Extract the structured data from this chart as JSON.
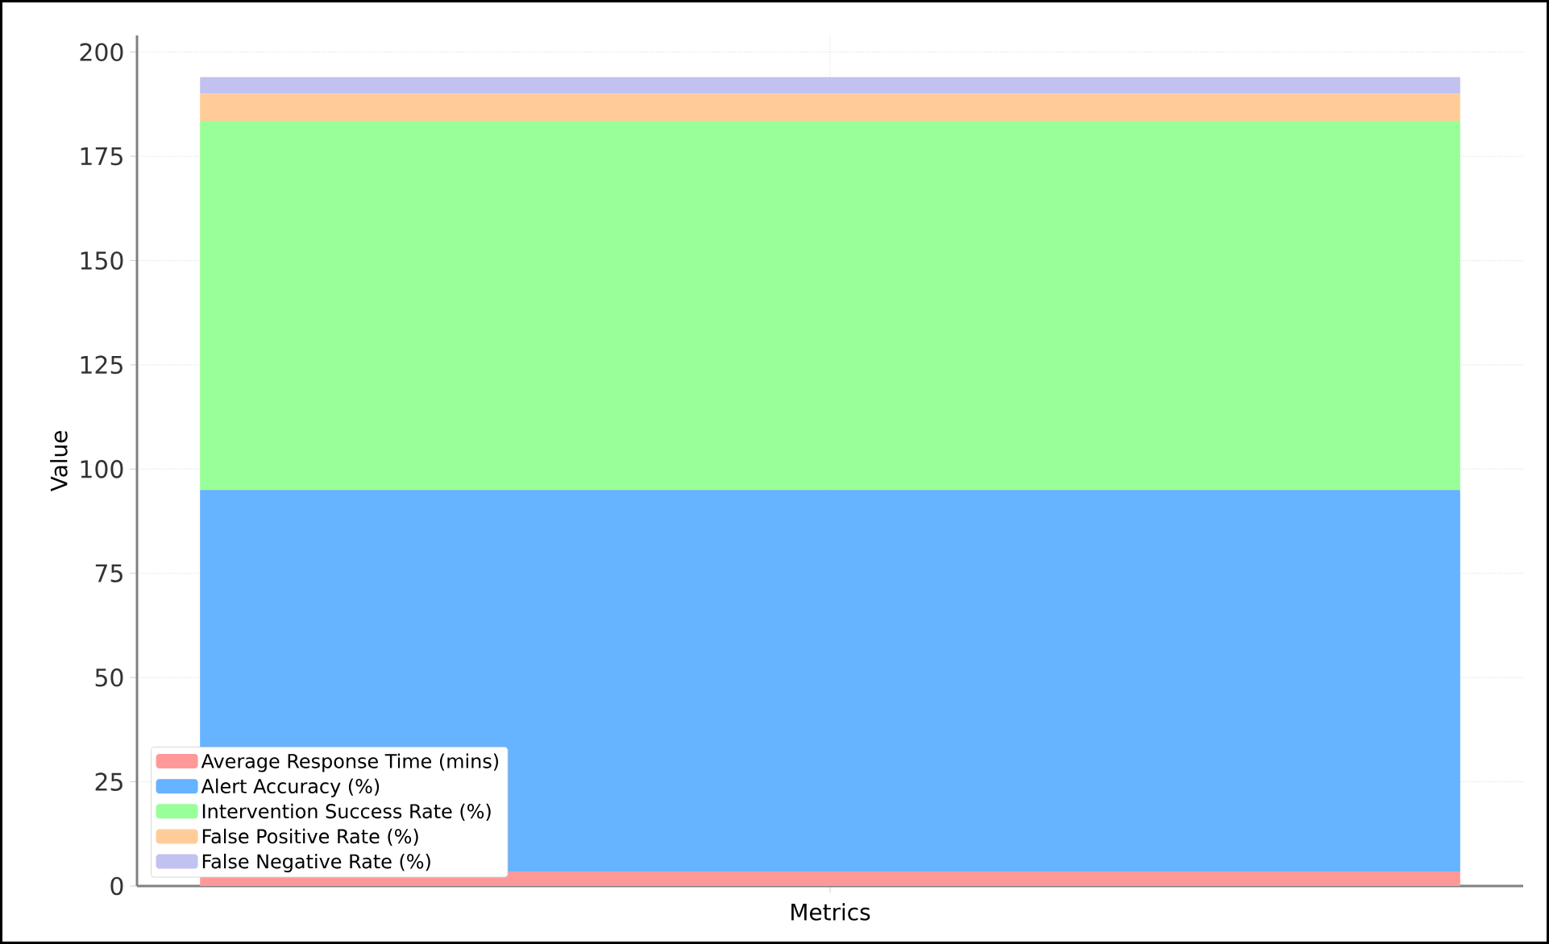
{
  "chart_data": {
    "type": "bar",
    "stacked": true,
    "xlabel": "Metrics",
    "ylabel": "Value",
    "categories": [
      null
    ],
    "series": [
      {
        "name": "Average Response Time (mins)",
        "color": "#ff9999",
        "values": [
          3.5
        ]
      },
      {
        "name": "Alert Accuracy (%)",
        "color": "#66b3ff",
        "values": [
          91.5
        ]
      },
      {
        "name": "Intervention Success Rate (%)",
        "color": "#99ff99",
        "values": [
          88.5
        ]
      },
      {
        "name": "False Positive Rate (%)",
        "color": "#ffcc99",
        "values": [
          6.5
        ]
      },
      {
        "name": "False Negative Rate (%)",
        "color": "#c2c2f0",
        "values": [
          4
        ]
      }
    ],
    "ylim": [
      0,
      204
    ],
    "yticks": [
      0,
      25,
      50,
      75,
      100,
      125,
      150,
      175,
      200
    ],
    "grid": true,
    "legend": "bottom left",
    "tick_labels": "y"
  }
}
